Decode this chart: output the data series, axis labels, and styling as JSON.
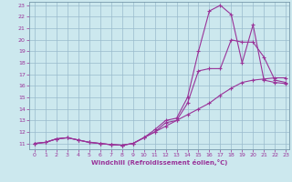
{
  "title": "",
  "xlabel": "Windchill (Refroidissement éolien,°C)",
  "bg_color": "#cce8ee",
  "grid_color": "#99bbcc",
  "line_color": "#993399",
  "xmin": 0,
  "xmax": 23,
  "ymin": 11,
  "ymax": 23,
  "yticks": [
    11,
    12,
    13,
    14,
    15,
    16,
    17,
    18,
    19,
    20,
    21,
    22,
    23
  ],
  "xticks": [
    0,
    1,
    2,
    3,
    4,
    5,
    6,
    7,
    8,
    9,
    10,
    11,
    12,
    13,
    14,
    15,
    16,
    17,
    18,
    19,
    20,
    21,
    22,
    23
  ],
  "line1_x": [
    0,
    1,
    2,
    3,
    4,
    5,
    6,
    7,
    8,
    9,
    10,
    11,
    12,
    13,
    14,
    15,
    16,
    17,
    18,
    19,
    20,
    21,
    22,
    23
  ],
  "line1_y": [
    11,
    11.1,
    11.4,
    11.5,
    11.3,
    11.1,
    11.0,
    10.9,
    10.85,
    11.0,
    11.5,
    12.2,
    13.0,
    13.2,
    15.0,
    19.0,
    22.5,
    23.0,
    22.2,
    18.0,
    21.3,
    16.5,
    16.3,
    16.2
  ],
  "line2_x": [
    0,
    1,
    2,
    3,
    4,
    5,
    6,
    7,
    8,
    9,
    10,
    11,
    12,
    13,
    14,
    15,
    16,
    17,
    18,
    19,
    20,
    21,
    22,
    23
  ],
  "line2_y": [
    11,
    11.1,
    11.4,
    11.5,
    11.3,
    11.1,
    11.0,
    10.9,
    10.85,
    11.0,
    11.5,
    12.0,
    12.8,
    13.0,
    14.5,
    17.3,
    17.5,
    17.5,
    20.0,
    19.8,
    19.8,
    18.5,
    16.5,
    16.3
  ],
  "line3_x": [
    0,
    1,
    2,
    3,
    4,
    5,
    6,
    7,
    8,
    9,
    10,
    11,
    12,
    13,
    14,
    15,
    16,
    17,
    18,
    19,
    20,
    21,
    22,
    23
  ],
  "line3_y": [
    11,
    11.1,
    11.4,
    11.5,
    11.3,
    11.1,
    11.0,
    10.9,
    10.85,
    11.0,
    11.5,
    12.0,
    12.5,
    13.0,
    13.5,
    14.0,
    14.5,
    15.2,
    15.8,
    16.3,
    16.5,
    16.6,
    16.7,
    16.7
  ]
}
